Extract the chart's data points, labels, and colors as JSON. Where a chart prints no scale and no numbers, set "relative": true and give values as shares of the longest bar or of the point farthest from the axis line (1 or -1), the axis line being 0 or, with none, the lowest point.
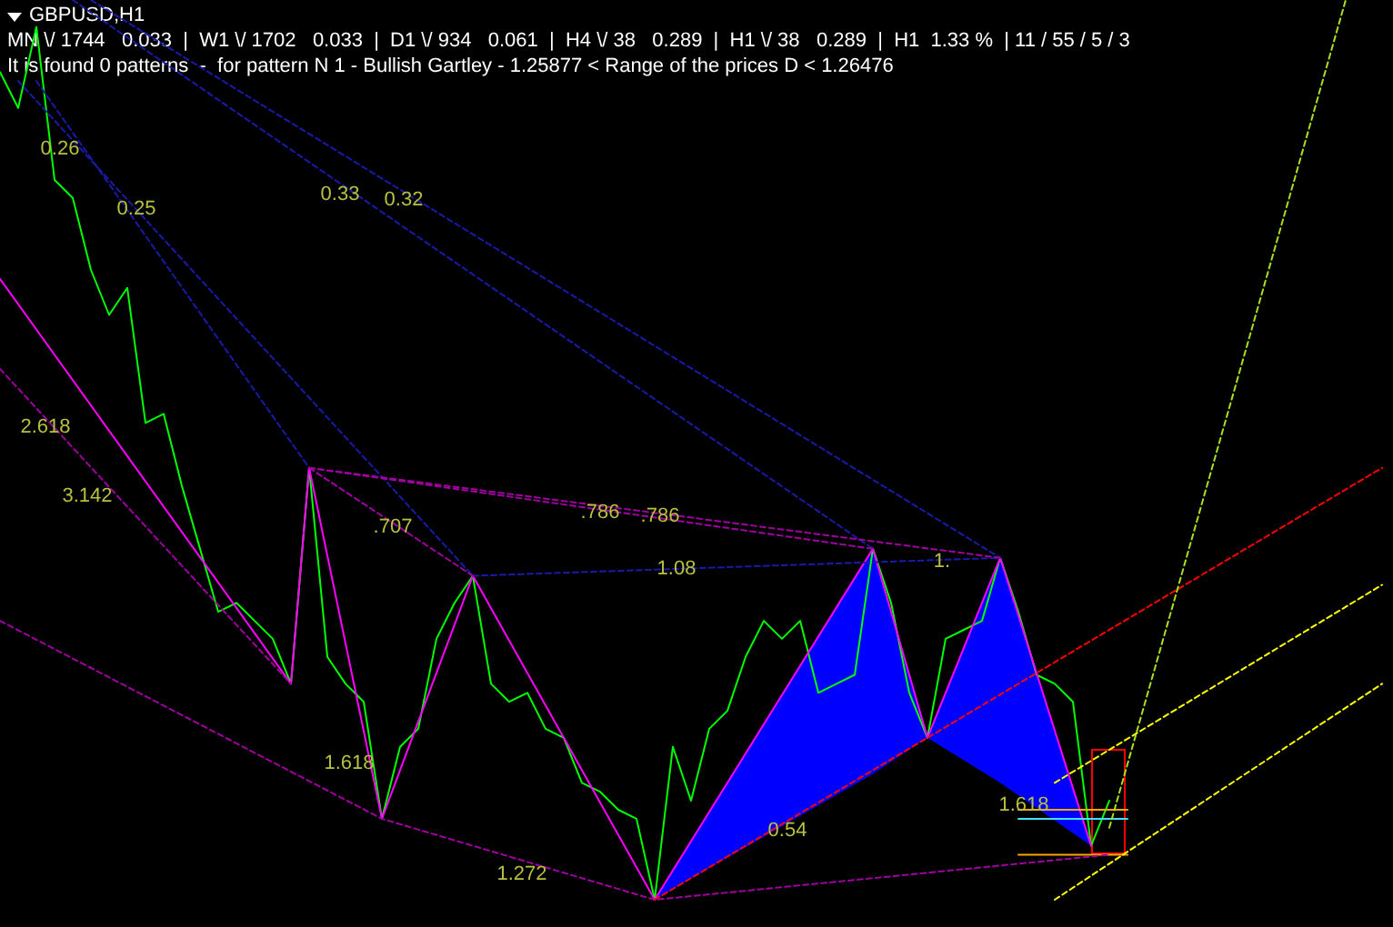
{
  "chart_data": {
    "type": "line",
    "relative": true,
    "tick_labels": false,
    "marker": "none",
    "title": "GBPUSD,H1",
    "subtitle": "MN \\/ 1744   0.033  |  W1 \\/ 1702   0.033  |  D1 \\/ 934   0.061  |  H4 \\/ 38   0.289  |  H1 \\/ 38   0.289  |  H1  1.33 %  | 11 / 55 / 5 / 3",
    "annotations": [
      "It is found 0 patterns  -  for pattern N 1 - Bullish Gartley - 1.25877 < Range of the prices D < 1.26476",
      "0.26",
      "0.25",
      "0.33",
      "0.32",
      "2.618",
      "3.142",
      ".707",
      ".786",
      ".786",
      "1.08",
      "1.",
      "1.618",
      "1.272",
      "0.54",
      "1.618"
    ],
    "categories": [
      null,
      null,
      null,
      null,
      null,
      null,
      null,
      null,
      null,
      null,
      null,
      null,
      null,
      null,
      null,
      null,
      null,
      null,
      null,
      null,
      null,
      null,
      null,
      null,
      null,
      null,
      null,
      null,
      null,
      null,
      null,
      null,
      null,
      null,
      null,
      null,
      null,
      null,
      null,
      null,
      null,
      null,
      null,
      null,
      null,
      null,
      null,
      null,
      null,
      null,
      null,
      null,
      null,
      null,
      null,
      null,
      null,
      null,
      null,
      null,
      null,
      null,
      null,
      null,
      null,
      null,
      null,
      null,
      null,
      null,
      null,
      null,
      null,
      null,
      null,
      null,
      null
    ],
    "series": [
      {
        "color": "#1a1aa8",
        "line_style": "dashed",
        "values": [
          null,
          0.91,
          null,
          null,
          null,
          null,
          null,
          null,
          null,
          null,
          null,
          null,
          null,
          null,
          null,
          null,
          null,
          null,
          null,
          null,
          null,
          null,
          null,
          null,
          null,
          null,
          0.36,
          null,
          null,
          null,
          null,
          null,
          null,
          null,
          null,
          null,
          null,
          null,
          null,
          null,
          null,
          null,
          null,
          null,
          null,
          null,
          null,
          null,
          null,
          null,
          null,
          null,
          null,
          null,
          null,
          null,
          null,
          null,
          null,
          null,
          null,
          null,
          null,
          null,
          null,
          null,
          null,
          null,
          null,
          null,
          null,
          null,
          null,
          null,
          null,
          null,
          null
        ]
      },
      {
        "color": "#1a1aa8",
        "line_style": "dashed",
        "values": [
          null,
          null,
          0.91,
          null,
          null,
          null,
          null,
          null,
          null,
          null,
          null,
          null,
          null,
          null,
          null,
          null,
          null,
          0.48,
          null,
          null,
          null,
          null,
          null,
          null,
          null,
          null,
          null,
          null,
          null,
          null,
          null,
          null,
          null,
          null,
          null,
          null,
          null,
          null,
          null,
          null,
          null,
          null,
          null,
          null,
          null,
          null,
          null,
          null,
          null,
          null,
          null,
          null,
          null,
          null,
          null,
          null,
          null,
          null,
          null,
          null,
          null,
          null,
          null,
          null,
          null,
          null,
          null,
          null,
          null,
          null,
          null,
          null,
          null,
          null,
          null,
          null,
          null
        ]
      },
      {
        "color": "#1a1aa8",
        "line_style": "dashed",
        "values": [
          null,
          null,
          null,
          null,
          1,
          null,
          null,
          null,
          null,
          null,
          null,
          null,
          null,
          null,
          null,
          null,
          null,
          null,
          null,
          null,
          null,
          null,
          null,
          null,
          null,
          null,
          null,
          null,
          null,
          null,
          null,
          null,
          null,
          null,
          null,
          null,
          null,
          null,
          null,
          null,
          null,
          null,
          null,
          null,
          null,
          null,
          null,
          null,
          0.39,
          null,
          null,
          null,
          null,
          null,
          null,
          null,
          null,
          null,
          null,
          null,
          null,
          null,
          null,
          null,
          null,
          null,
          null,
          null,
          null,
          null,
          null,
          null,
          null,
          null,
          null,
          null,
          null
        ]
      },
      {
        "color": "#1a1aa8",
        "line_style": "dashed",
        "values": [
          null,
          null,
          null,
          null,
          null,
          1,
          null,
          null,
          null,
          null,
          null,
          null,
          null,
          null,
          null,
          null,
          null,
          null,
          null,
          null,
          null,
          null,
          null,
          null,
          null,
          null,
          null,
          null,
          null,
          null,
          null,
          null,
          null,
          null,
          null,
          null,
          null,
          null,
          null,
          null,
          null,
          null,
          null,
          null,
          null,
          null,
          null,
          null,
          null,
          null,
          null,
          null,
          null,
          null,
          null,
          0.38,
          null,
          null,
          null,
          null,
          null,
          null,
          null,
          null,
          null,
          null,
          null,
          null,
          null,
          null,
          null,
          null,
          null,
          null,
          null,
          null,
          null
        ]
      },
      {
        "color": "#1a1aa8",
        "line_style": "dashed",
        "values": [
          null,
          null,
          null,
          null,
          null,
          null,
          null,
          null,
          null,
          null,
          null,
          null,
          null,
          null,
          null,
          null,
          null,
          null,
          null,
          null,
          null,
          null,
          null,
          null,
          null,
          null,
          0.36,
          null,
          null,
          null,
          null,
          null,
          null,
          null,
          null,
          null,
          null,
          null,
          null,
          null,
          null,
          null,
          null,
          null,
          null,
          null,
          null,
          null,
          null,
          null,
          null,
          null,
          null,
          null,
          null,
          0.38,
          null,
          null,
          null,
          null,
          null,
          null,
          null,
          null,
          null,
          null,
          null,
          null,
          null,
          null,
          null,
          null,
          null,
          null,
          null,
          null,
          null
        ]
      },
      {
        "color": "#a000a0",
        "line_style": "dashed",
        "values": [
          null,
          null,
          null,
          null,
          null,
          null,
          null,
          null,
          null,
          null,
          null,
          null,
          null,
          null,
          null,
          null,
          null,
          0.48,
          null,
          null,
          null,
          null,
          null,
          null,
          null,
          null,
          null,
          null,
          null,
          null,
          null,
          null,
          null,
          null,
          null,
          null,
          null,
          null,
          null,
          null,
          null,
          null,
          null,
          null,
          null,
          null,
          null,
          null,
          null,
          null,
          null,
          null,
          null,
          null,
          null,
          0.38,
          null,
          null,
          null,
          null,
          null,
          null,
          null,
          null,
          null,
          null,
          null,
          null,
          null,
          null,
          null,
          null,
          null,
          null,
          null,
          null,
          null
        ]
      },
      {
        "color": "#a000a0",
        "line_style": "dashed",
        "values": [
          null,
          null,
          null,
          null,
          null,
          null,
          null,
          null,
          null,
          null,
          null,
          null,
          null,
          null,
          null,
          null,
          null,
          0.48,
          null,
          null,
          null,
          null,
          null,
          null,
          null,
          null,
          null,
          null,
          null,
          null,
          null,
          null,
          null,
          null,
          null,
          null,
          null,
          null,
          null,
          null,
          null,
          null,
          null,
          null,
          null,
          null,
          null,
          null,
          0.39,
          null,
          null,
          null,
          null,
          null,
          null,
          null,
          null,
          null,
          null,
          null,
          null,
          null,
          null,
          null,
          null,
          null,
          null,
          null,
          null,
          null,
          null,
          null,
          null,
          null,
          null,
          null,
          null
        ]
      },
      {
        "color": "#a000a0",
        "line_style": "dashed",
        "values": [
          null,
          null,
          null,
          null,
          null,
          null,
          null,
          null,
          null,
          null,
          null,
          null,
          null,
          null,
          null,
          null,
          null,
          0.48,
          null,
          null,
          null,
          null,
          null,
          null,
          null,
          null,
          0.36,
          null,
          null,
          null,
          null,
          null,
          null,
          null,
          null,
          null,
          null,
          null,
          null,
          null,
          null,
          null,
          null,
          null,
          null,
          null,
          null,
          null,
          null,
          null,
          null,
          null,
          null,
          null,
          null,
          null,
          null,
          null,
          null,
          null,
          null,
          null,
          null,
          null,
          null,
          null,
          null,
          null,
          null,
          null,
          null,
          null,
          null,
          null,
          null,
          null,
          null
        ]
      },
      {
        "color": "#a000a0",
        "line_style": "dashed",
        "values": [
          0.31,
          null,
          null,
          null,
          null,
          null,
          null,
          null,
          null,
          null,
          null,
          null,
          null,
          null,
          null,
          null,
          null,
          null,
          null,
          null,
          null,
          0.09,
          null,
          null,
          null,
          null,
          null,
          null,
          null,
          null,
          null,
          null,
          null,
          null,
          null,
          null,
          0,
          null,
          null,
          null,
          null,
          null,
          null,
          null,
          null,
          null,
          null,
          null,
          null,
          null,
          null,
          null,
          null,
          null,
          null,
          null,
          null,
          null,
          null,
          null,
          null,
          0.05,
          null,
          null,
          null,
          null,
          null,
          null,
          null,
          null,
          null,
          null,
          null,
          null,
          null,
          null,
          null
        ]
      },
      {
        "color": "#a000a0",
        "line_style": "dashed",
        "values": [
          0.59,
          null,
          null,
          null,
          null,
          null,
          null,
          null,
          null,
          null,
          null,
          null,
          null,
          null,
          null,
          null,
          0.24,
          null,
          null,
          null,
          null,
          null,
          null,
          null,
          null,
          null,
          null,
          null,
          null,
          null,
          null,
          null,
          null,
          null,
          null,
          null,
          null,
          null,
          null,
          null,
          null,
          null,
          null,
          null,
          null,
          null,
          null,
          null,
          null,
          null,
          null,
          null,
          null,
          null,
          null,
          null,
          null,
          null,
          null,
          null,
          null,
          null,
          null,
          null,
          null,
          null,
          null,
          null,
          null,
          null,
          null,
          null,
          null,
          null,
          null,
          null,
          null
        ]
      },
      {
        "color": "#0000ff",
        "values": [
          null,
          null,
          null,
          null,
          null,
          null,
          null,
          null,
          null,
          null,
          null,
          null,
          null,
          null,
          null,
          null,
          null,
          null,
          null,
          null,
          null,
          null,
          null,
          null,
          null,
          null,
          null,
          null,
          null,
          null,
          null,
          null,
          null,
          null,
          null,
          null,
          null,
          null,
          null,
          null,
          null,
          null,
          null,
          null,
          null,
          null,
          null,
          null,
          null,
          null,
          null,
          null,
          null,
          null,
          null,
          null,
          null,
          null,
          null,
          null,
          null,
          null,
          null,
          null,
          null,
          null,
          null,
          null,
          null,
          null,
          null,
          null,
          null,
          null,
          null,
          null,
          null
        ],
        "lower": [
          null,
          null,
          null,
          null,
          null,
          null,
          null,
          null,
          null,
          null,
          null,
          null,
          null,
          null,
          null,
          null,
          null,
          null,
          null,
          null,
          null,
          null,
          null,
          null,
          null,
          null,
          null,
          null,
          null,
          null,
          null,
          null,
          null,
          null,
          null,
          null,
          0,
          null,
          null,
          null,
          null,
          null,
          null,
          null,
          null,
          null,
          null,
          null,
          0.14,
          null,
          null,
          0.18,
          null,
          null,
          null,
          0.13,
          null,
          null,
          null,
          null,
          0.06,
          null,
          null,
          null,
          null,
          null,
          null,
          null,
          null,
          null,
          null,
          null,
          null,
          null,
          null,
          null,
          null
        ],
        "upper": [
          null,
          null,
          null,
          null,
          null,
          null,
          null,
          null,
          null,
          null,
          null,
          null,
          null,
          null,
          null,
          null,
          null,
          null,
          null,
          null,
          null,
          null,
          null,
          null,
          null,
          null,
          null,
          null,
          null,
          null,
          null,
          null,
          null,
          null,
          null,
          null,
          0,
          null,
          null,
          null,
          null,
          null,
          null,
          null,
          null,
          null,
          null,
          null,
          0.39,
          null,
          null,
          0.18,
          null,
          null,
          null,
          0.38,
          null,
          null,
          null,
          null,
          0.06,
          null,
          null,
          null,
          null,
          null,
          null,
          null,
          null,
          null,
          null,
          null,
          null,
          null,
          null,
          null,
          null
        ]
      },
      {
        "color": "#ff0000",
        "line_style": "dashed",
        "values": [
          null,
          null,
          null,
          null,
          null,
          null,
          null,
          null,
          null,
          null,
          null,
          null,
          null,
          null,
          null,
          null,
          null,
          null,
          null,
          null,
          null,
          null,
          null,
          null,
          null,
          null,
          null,
          null,
          null,
          null,
          null,
          null,
          null,
          null,
          null,
          null,
          0,
          null,
          null,
          null,
          null,
          null,
          null,
          null,
          null,
          null,
          null,
          null,
          null,
          null,
          null,
          null,
          null,
          null,
          null,
          null,
          null,
          null,
          null,
          null,
          null,
          null,
          null,
          null,
          null,
          null,
          null,
          null,
          null,
          null,
          null,
          null,
          null,
          null,
          null,
          null,
          0.48
        ]
      },
      {
        "color": "#ffff00",
        "line_style": "dashed",
        "values": [
          null,
          null,
          null,
          null,
          null,
          null,
          null,
          null,
          null,
          null,
          null,
          null,
          null,
          null,
          null,
          null,
          null,
          null,
          null,
          null,
          null,
          null,
          null,
          null,
          null,
          null,
          null,
          null,
          null,
          null,
          null,
          null,
          null,
          null,
          null,
          null,
          null,
          null,
          null,
          null,
          null,
          null,
          null,
          null,
          null,
          null,
          null,
          null,
          null,
          null,
          null,
          null,
          null,
          null,
          null,
          null,
          null,
          null,
          0.13,
          null,
          null,
          null,
          null,
          null,
          null,
          null,
          null,
          null,
          null,
          null,
          null,
          null,
          null,
          null,
          null,
          null,
          0.35
        ]
      },
      {
        "color": "#ffff00",
        "line_style": "dashed",
        "values": [
          null,
          null,
          null,
          null,
          null,
          null,
          null,
          null,
          null,
          null,
          null,
          null,
          null,
          null,
          null,
          null,
          null,
          null,
          null,
          null,
          null,
          null,
          null,
          null,
          null,
          null,
          null,
          null,
          null,
          null,
          null,
          null,
          null,
          null,
          null,
          null,
          null,
          null,
          null,
          null,
          null,
          null,
          null,
          null,
          null,
          null,
          null,
          null,
          null,
          null,
          null,
          null,
          null,
          null,
          null,
          null,
          null,
          null,
          0,
          null,
          null,
          null,
          null,
          null,
          null,
          null,
          null,
          null,
          null,
          null,
          null,
          null,
          null,
          null,
          null,
          null,
          0.24
        ]
      },
      {
        "color": "#a8e020",
        "line_style": "dashed",
        "values": [
          null,
          null,
          null,
          null,
          null,
          null,
          null,
          null,
          null,
          null,
          null,
          null,
          null,
          null,
          null,
          null,
          null,
          null,
          null,
          null,
          null,
          null,
          null,
          null,
          null,
          null,
          null,
          null,
          null,
          null,
          null,
          null,
          null,
          null,
          null,
          null,
          null,
          null,
          null,
          null,
          null,
          null,
          null,
          null,
          null,
          null,
          null,
          null,
          null,
          null,
          null,
          null,
          null,
          null,
          null,
          null,
          null,
          null,
          null,
          null,
          null,
          0.08,
          null,
          null,
          null,
          null,
          null,
          null,
          null,
          null,
          null,
          null,
          null,
          null,
          1,
          null,
          null
        ]
      },
      {
        "color": "#00ff00",
        "values": [
          0.92,
          0.88,
          0.97,
          0.8,
          0.78,
          0.7,
          0.65,
          0.68,
          0.53,
          0.54,
          0.46,
          0.39,
          0.32,
          0.33,
          0.31,
          0.29,
          0.24,
          0.48,
          0.27,
          0.24,
          0.22,
          0.09,
          0.17,
          0.19,
          0.29,
          0.33,
          0.36,
          0.24,
          0.22,
          0.23,
          0.19,
          0.18,
          0.13,
          0.12,
          0.1,
          0.09,
          0,
          0.17,
          0.11,
          0.19,
          0.21,
          0.27,
          0.31,
          0.29,
          0.31,
          0.23,
          0.24,
          0.25,
          0.39,
          0.33,
          0.23,
          0.18,
          0.29,
          0.3,
          0.31,
          0.38,
          0.32,
          0.25,
          0.24,
          0.22,
          0.06,
          0.11,
          null,
          null,
          null,
          null,
          null,
          null,
          null,
          null,
          null,
          null,
          null,
          null,
          null,
          null,
          null
        ]
      },
      {
        "color": "#ff00ff",
        "values": [
          0.69,
          null,
          null,
          null,
          null,
          null,
          null,
          null,
          null,
          null,
          null,
          null,
          null,
          null,
          null,
          null,
          0.24,
          0.48,
          null,
          null,
          null,
          0.09,
          null,
          null,
          null,
          null,
          0.36,
          null,
          null,
          null,
          null,
          null,
          null,
          null,
          null,
          null,
          0,
          null,
          null,
          null,
          null,
          null,
          null,
          null,
          null,
          null,
          null,
          null,
          null,
          null,
          null,
          null,
          null,
          null,
          null,
          null,
          null,
          null,
          null,
          null,
          null,
          null,
          null,
          null,
          null,
          null,
          null,
          null,
          null,
          null,
          null,
          null,
          null,
          null,
          null,
          null,
          null
        ]
      },
      {
        "color": "#ff00ff",
        "values": [
          null,
          null,
          null,
          null,
          null,
          null,
          null,
          null,
          null,
          null,
          null,
          null,
          null,
          null,
          null,
          null,
          null,
          null,
          null,
          null,
          null,
          null,
          null,
          null,
          null,
          null,
          null,
          null,
          null,
          null,
          null,
          null,
          null,
          null,
          null,
          null,
          0,
          null,
          null,
          null,
          null,
          null,
          null,
          null,
          null,
          null,
          null,
          null,
          0.39,
          null,
          null,
          0.18,
          null,
          null,
          null,
          0.38,
          null,
          null,
          null,
          null,
          0.06,
          null,
          null,
          null,
          null,
          null,
          null,
          null,
          null,
          null,
          null,
          null,
          null,
          null,
          null,
          null,
          null
        ]
      },
      {
        "color": "#ffa500",
        "values": [
          null,
          null,
          null,
          null,
          null,
          null,
          null,
          null,
          null,
          null,
          null,
          null,
          null,
          null,
          null,
          null,
          null,
          null,
          null,
          null,
          null,
          null,
          null,
          null,
          null,
          null,
          null,
          null,
          null,
          null,
          null,
          null,
          null,
          null,
          null,
          null,
          null,
          null,
          null,
          null,
          null,
          null,
          null,
          null,
          null,
          null,
          null,
          null,
          null,
          null,
          null,
          null,
          null,
          null,
          null,
          null,
          0.1,
          null,
          null,
          null,
          null,
          null,
          0.1,
          null,
          null,
          null,
          null,
          null,
          null,
          null,
          null,
          null,
          null,
          null,
          null,
          null,
          null
        ]
      },
      {
        "color": "#40e0ff",
        "values": [
          null,
          null,
          null,
          null,
          null,
          null,
          null,
          null,
          null,
          null,
          null,
          null,
          null,
          null,
          null,
          null,
          null,
          null,
          null,
          null,
          null,
          null,
          null,
          null,
          null,
          null,
          null,
          null,
          null,
          null,
          null,
          null,
          null,
          null,
          null,
          null,
          null,
          null,
          null,
          null,
          null,
          null,
          null,
          null,
          null,
          null,
          null,
          null,
          null,
          null,
          null,
          null,
          null,
          null,
          null,
          null,
          0.09,
          null,
          null,
          null,
          null,
          null,
          0.09,
          null,
          null,
          null,
          null,
          null,
          null,
          null,
          null,
          null,
          null,
          null,
          null,
          null,
          null
        ]
      },
      {
        "color": "#ffa500",
        "values": [
          null,
          null,
          null,
          null,
          null,
          null,
          null,
          null,
          null,
          null,
          null,
          null,
          null,
          null,
          null,
          null,
          null,
          null,
          null,
          null,
          null,
          null,
          null,
          null,
          null,
          null,
          null,
          null,
          null,
          null,
          null,
          null,
          null,
          null,
          null,
          null,
          null,
          null,
          null,
          null,
          null,
          null,
          null,
          null,
          null,
          null,
          null,
          null,
          null,
          null,
          null,
          null,
          null,
          null,
          null,
          null,
          0.05,
          null,
          null,
          null,
          null,
          null,
          0.05,
          null,
          null,
          null,
          null,
          null,
          null,
          null,
          null,
          null,
          null,
          null,
          null,
          null,
          null
        ]
      }
    ]
  }
}
